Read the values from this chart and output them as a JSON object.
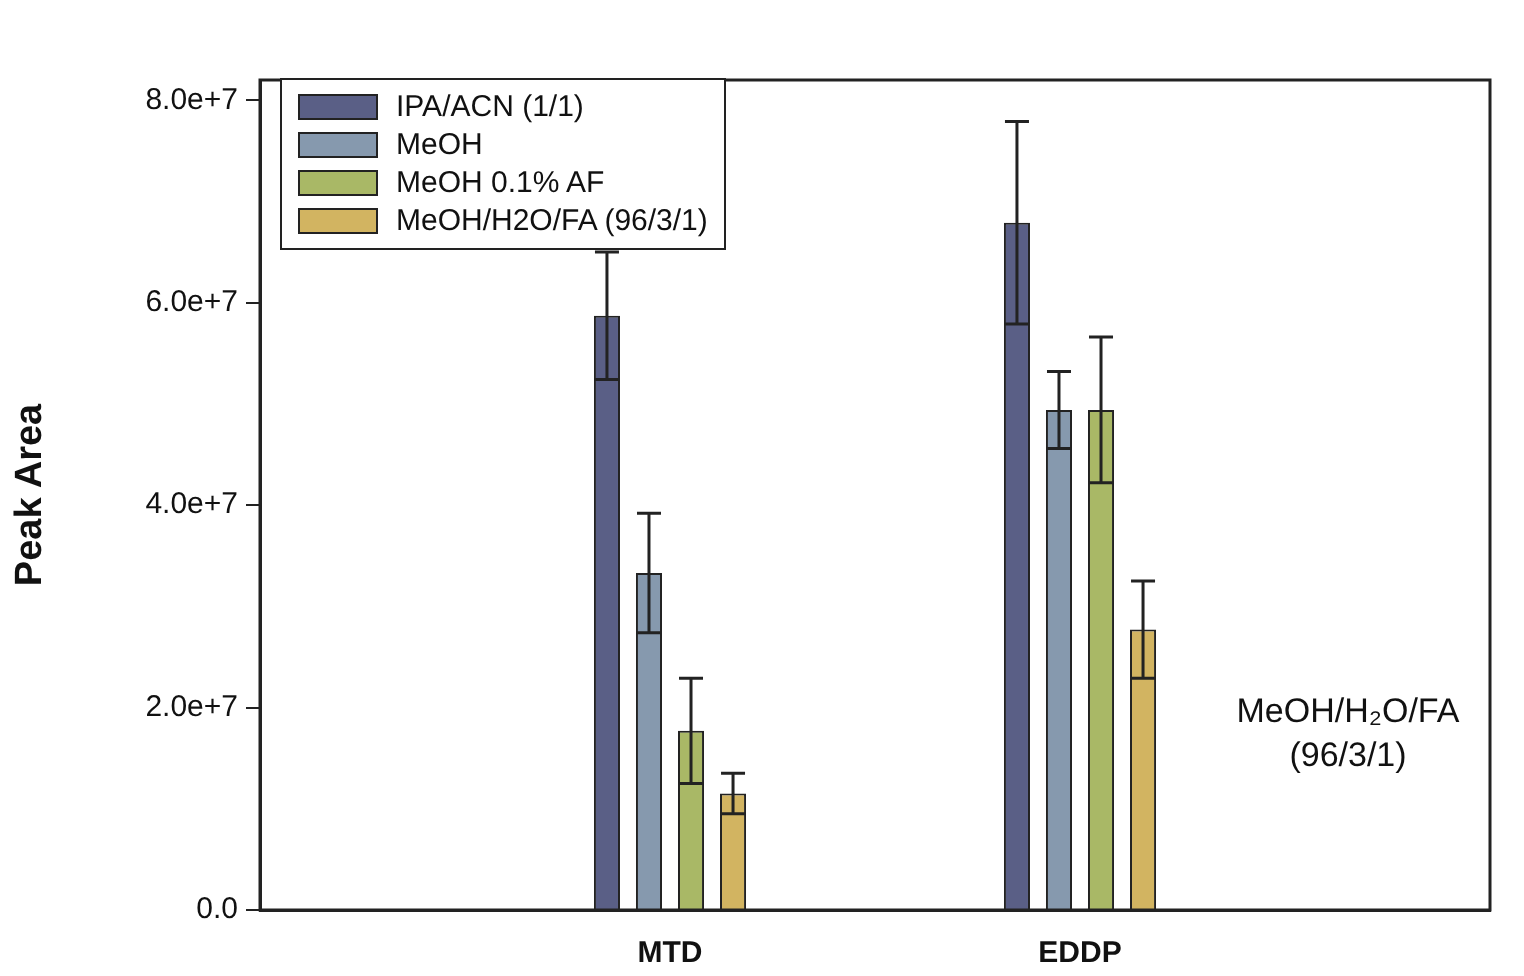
{
  "chart_data": {
    "type": "bar",
    "ylabel": "Peak Area",
    "categories": [
      null,
      "MTD",
      "EDDP",
      null
    ],
    "series": [
      {
        "name": "IPA/ACN (1/1)",
        "color": "#5a5f86",
        "values": [
          null,
          58700000.0,
          67900000.0,
          null
        ],
        "errors": [
          null,
          6300000.0,
          10000000.0,
          null
        ]
      },
      {
        "name": "MeOH",
        "color": "#8699ae",
        "values": [
          null,
          33300000.0,
          49400000.0,
          null
        ],
        "errors": [
          null,
          5900000.0,
          3800000.0,
          null
        ]
      },
      {
        "name": "MeOH 0.1% AF",
        "color": "#a9b866",
        "values": [
          null,
          17700000.0,
          49400000.0,
          null
        ],
        "errors": [
          null,
          5200000.0,
          7200000.0,
          null
        ]
      },
      {
        "name": "MeOH/H2O/FA (96/3/1)",
        "color": "#d2b461",
        "values": [
          null,
          11500000.0,
          27700000.0,
          null
        ],
        "errors": [
          null,
          2000000.0,
          4800000.0,
          null
        ]
      }
    ],
    "ylim": [
      0,
      82000000.0
    ],
    "yticks": [
      {
        "value": 0,
        "label": "0.0"
      },
      {
        "value": 20000000.0,
        "label": "2.0e+7"
      },
      {
        "value": 40000000.0,
        "label": "4.0e+7"
      },
      {
        "value": 60000000.0,
        "label": "6.0e+7"
      },
      {
        "value": 80000000.0,
        "label": "8.0e+7"
      }
    ],
    "annotations": [
      "MeOH/H₂O/FA (96/3/1)"
    ],
    "legend": "top left",
    "grid": false
  }
}
